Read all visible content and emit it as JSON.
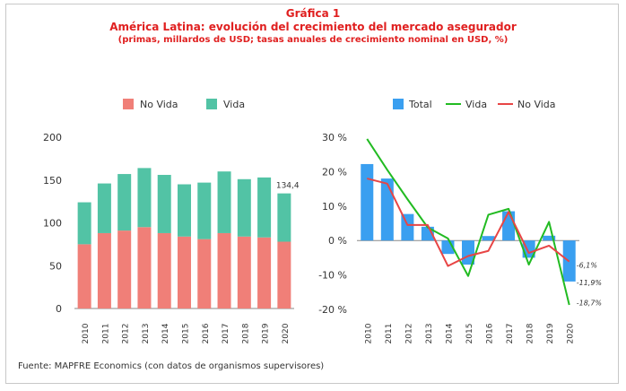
{
  "header": {
    "title": "Gráfica 1",
    "subtitle": "América Latina: evolución del crecimiento del mercado asegurador",
    "note": "(primas, millardos de USD; tasas anuales de crecimiento nominal en USD, %)"
  },
  "source": "Fuente: MAPFRE Economics (con datos de organismos supervisores)",
  "colors": {
    "no_vida": "#f07f78",
    "vida": "#52c3a5",
    "total": "#3a9ff0",
    "vida_line": "#22bb22",
    "no_vida_line": "#e84545",
    "title": "#e02020"
  },
  "chart_data": [
    {
      "type": "bar",
      "stacked": true,
      "categories": [
        "2010",
        "2011",
        "2012",
        "2013",
        "2014",
        "2015",
        "2016",
        "2017",
        "2018",
        "2019",
        "2020"
      ],
      "series": [
        {
          "name": "No Vida",
          "values": [
            75,
            88,
            91,
            95,
            88,
            84,
            81,
            88,
            84,
            83,
            78
          ]
        },
        {
          "name": "Vida",
          "values": [
            49,
            58,
            66,
            69,
            68,
            61,
            66,
            72,
            67,
            70,
            56.4
          ]
        }
      ],
      "ylim": [
        0,
        200
      ],
      "yticks": [
        "0",
        "50",
        "100",
        "150",
        "200"
      ],
      "yticks_values": [
        0,
        50,
        100,
        150,
        200
      ],
      "data_labels": [
        {
          "category": "2020",
          "text": "134,4"
        }
      ],
      "legend": "top"
    },
    {
      "type": "bar+line",
      "categories": [
        "2010",
        "2011",
        "2012",
        "2013",
        "2014",
        "2015",
        "2016",
        "2017",
        "2018",
        "2019",
        "2020"
      ],
      "bars": {
        "name": "Total",
        "values": [
          22.2,
          18.0,
          7.7,
          4.0,
          -3.9,
          -7.0,
          1.3,
          8.5,
          -5.0,
          1.4,
          -11.9
        ]
      },
      "lines": [
        {
          "name": "Vida",
          "values": [
            29.5,
            20.5,
            12.0,
            3.8,
            0.6,
            -10.3,
            7.5,
            9.2,
            -7.0,
            5.4,
            -18.7
          ]
        },
        {
          "name": "No Vida",
          "values": [
            18.0,
            16.5,
            4.5,
            4.5,
            -7.4,
            -4.5,
            -3.0,
            8.3,
            -3.6,
            -1.5,
            -6.1
          ]
        }
      ],
      "ylim": [
        -20,
        30
      ],
      "yticks": [
        "30 %",
        "20 %",
        "10 %",
        "0 %",
        "-10 %",
        "-20 %"
      ],
      "yticks_values": [
        30,
        20,
        10,
        0,
        -10,
        -20
      ],
      "end_labels": [
        "-6,1%",
        "-11,9%",
        "-18,7%"
      ],
      "legend": "top"
    }
  ]
}
